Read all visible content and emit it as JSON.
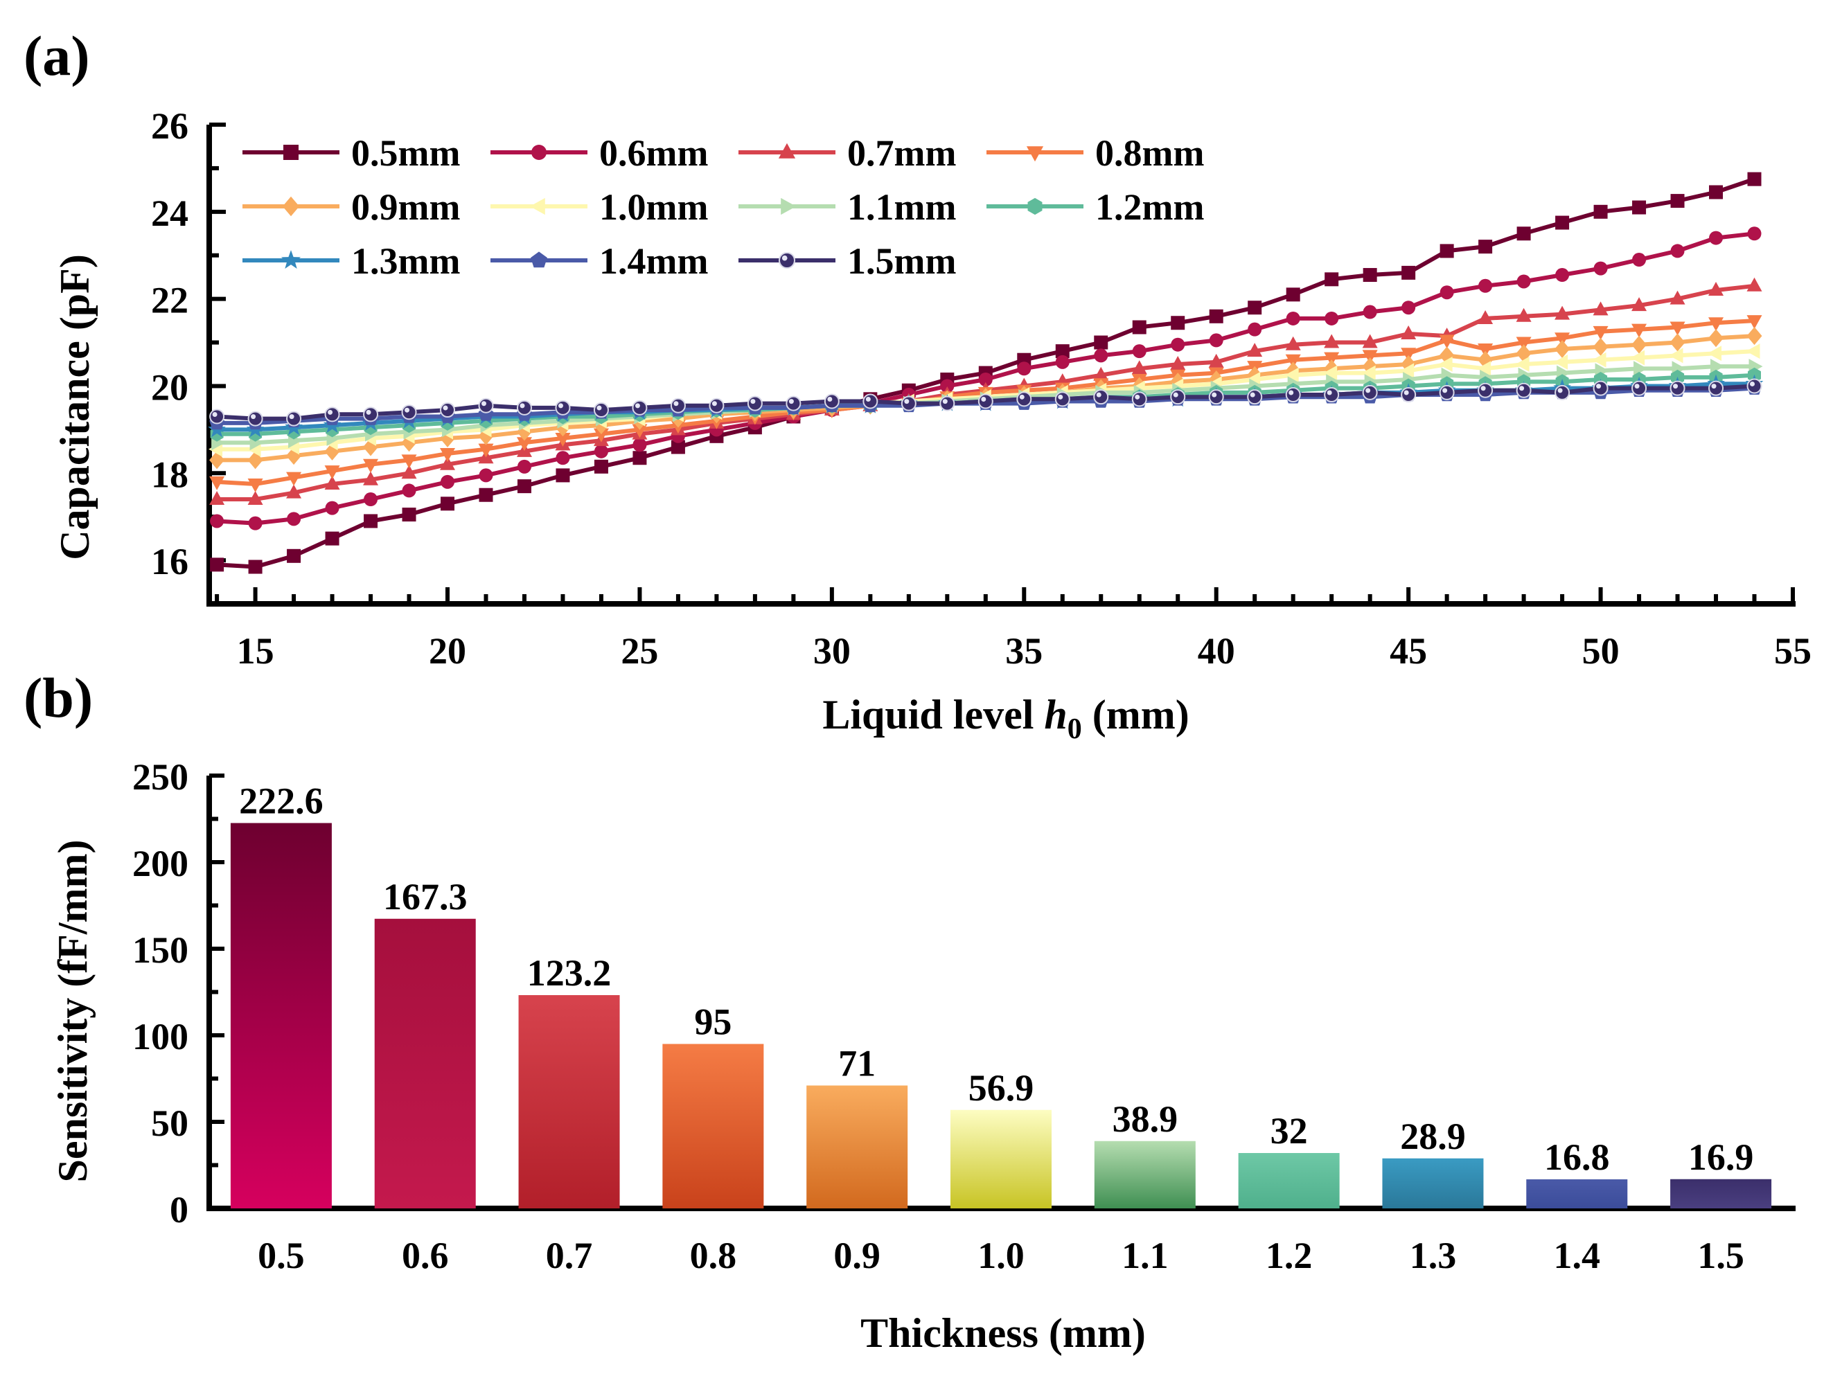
{
  "panels": {
    "a": {
      "label": "(a)"
    },
    "b": {
      "label": "(b)"
    }
  },
  "chart_data": [
    {
      "type": "line",
      "panel": "(a)",
      "title": "",
      "xlabel_prefix": "Liquid level ",
      "xlabel_var": "h",
      "xlabel_sub": "0",
      "xlabel_suffix": " (mm)",
      "ylabel": "Capacitance (pF)",
      "xlim": [
        13.8,
        55
      ],
      "ylim": [
        15,
        26
      ],
      "xticks": [
        15,
        20,
        25,
        30,
        35,
        40,
        45,
        50,
        55
      ],
      "yticks": [
        16,
        18,
        20,
        22,
        24,
        26
      ],
      "x": [
        14,
        15,
        16,
        17,
        18,
        19,
        20,
        21,
        22,
        23,
        24,
        25,
        26,
        27,
        28,
        29,
        30,
        31,
        32,
        33,
        34,
        35,
        36,
        37,
        38,
        39,
        40,
        41,
        42,
        43,
        44,
        45,
        46,
        47,
        48,
        49,
        50,
        51,
        52,
        53,
        54
      ],
      "legend_position": "top-left",
      "series": [
        {
          "name": "0.5mm",
          "color": "#6e0030",
          "marker": "square",
          "values": [
            15.9,
            15.85,
            16.1,
            16.5,
            16.9,
            17.05,
            17.3,
            17.5,
            17.7,
            17.95,
            18.15,
            18.35,
            18.6,
            18.85,
            19.05,
            19.3,
            19.5,
            19.7,
            19.9,
            20.15,
            20.3,
            20.6,
            20.8,
            21.0,
            21.35,
            21.45,
            21.6,
            21.8,
            22.1,
            22.45,
            22.55,
            22.6,
            23.1,
            23.2,
            23.5,
            23.75,
            24.0,
            24.1,
            24.25,
            24.45,
            24.75
          ]
        },
        {
          "name": "0.6mm",
          "color": "#b0124a",
          "marker": "circle",
          "values": [
            16.9,
            16.85,
            16.95,
            17.2,
            17.4,
            17.6,
            17.8,
            17.95,
            18.15,
            18.35,
            18.5,
            18.65,
            18.85,
            19.0,
            19.15,
            19.3,
            19.45,
            19.6,
            19.8,
            20.0,
            20.15,
            20.4,
            20.55,
            20.7,
            20.8,
            20.95,
            21.05,
            21.3,
            21.55,
            21.55,
            21.7,
            21.8,
            22.15,
            22.3,
            22.4,
            22.55,
            22.7,
            22.9,
            23.1,
            23.4,
            23.5
          ]
        },
        {
          "name": "0.7mm",
          "color": "#d7434d",
          "marker": "triangle-up",
          "values": [
            17.4,
            17.4,
            17.55,
            17.75,
            17.85,
            18.0,
            18.2,
            18.35,
            18.5,
            18.65,
            18.75,
            18.9,
            19.0,
            19.15,
            19.25,
            19.35,
            19.45,
            19.55,
            19.65,
            19.8,
            19.9,
            20.0,
            20.1,
            20.25,
            20.4,
            20.5,
            20.55,
            20.8,
            20.95,
            21.0,
            21.0,
            21.2,
            21.15,
            21.55,
            21.6,
            21.65,
            21.75,
            21.85,
            22.0,
            22.2,
            22.3
          ]
        },
        {
          "name": "0.8mm",
          "color": "#f57c45",
          "marker": "triangle-down",
          "values": [
            17.8,
            17.75,
            17.9,
            18.05,
            18.2,
            18.3,
            18.45,
            18.55,
            18.7,
            18.8,
            18.9,
            19.0,
            19.1,
            19.2,
            19.3,
            19.4,
            19.45,
            19.55,
            19.6,
            19.75,
            19.85,
            19.9,
            19.95,
            20.05,
            20.15,
            20.25,
            20.3,
            20.45,
            20.6,
            20.65,
            20.7,
            20.75,
            21.05,
            20.85,
            21.0,
            21.1,
            21.25,
            21.3,
            21.35,
            21.45,
            21.5
          ]
        },
        {
          "name": "0.9mm",
          "color": "#f9ac5e",
          "marker": "diamond",
          "values": [
            18.3,
            18.3,
            18.4,
            18.5,
            18.6,
            18.7,
            18.8,
            18.85,
            18.95,
            19.05,
            19.1,
            19.2,
            19.25,
            19.35,
            19.4,
            19.45,
            19.5,
            19.55,
            19.6,
            19.7,
            19.75,
            19.8,
            19.85,
            19.95,
            20.0,
            20.1,
            20.15,
            20.25,
            20.35,
            20.4,
            20.45,
            20.5,
            20.7,
            20.6,
            20.75,
            20.85,
            20.9,
            20.95,
            21.0,
            21.1,
            21.15
          ]
        },
        {
          "name": "1.0mm",
          "color": "#fef7ae",
          "marker": "triangle-left",
          "values": [
            18.55,
            18.55,
            18.6,
            18.7,
            18.8,
            18.85,
            18.95,
            19.0,
            19.1,
            19.15,
            19.2,
            19.25,
            19.35,
            19.4,
            19.45,
            19.5,
            19.55,
            19.6,
            19.65,
            19.7,
            19.75,
            19.8,
            19.85,
            19.9,
            19.95,
            20.0,
            20.05,
            20.15,
            20.25,
            20.3,
            20.3,
            20.35,
            20.5,
            20.4,
            20.5,
            20.55,
            20.6,
            20.65,
            20.7,
            20.75,
            20.8
          ]
        },
        {
          "name": "1.1mm",
          "color": "#b5ddb0",
          "marker": "triangle-right",
          "values": [
            18.7,
            18.7,
            18.75,
            18.8,
            18.9,
            18.95,
            19.0,
            19.1,
            19.15,
            19.2,
            19.25,
            19.3,
            19.35,
            19.4,
            19.45,
            19.5,
            19.55,
            19.6,
            19.6,
            19.65,
            19.7,
            19.75,
            19.8,
            19.85,
            19.85,
            19.9,
            19.95,
            20.0,
            20.05,
            20.1,
            20.1,
            20.15,
            20.25,
            20.2,
            20.25,
            20.3,
            20.35,
            20.4,
            20.4,
            20.45,
            20.45
          ]
        },
        {
          "name": "1.2mm",
          "color": "#5fbb9a",
          "marker": "hexagon",
          "values": [
            18.9,
            18.9,
            18.95,
            19.0,
            19.05,
            19.1,
            19.15,
            19.2,
            19.25,
            19.3,
            19.3,
            19.35,
            19.4,
            19.45,
            19.45,
            19.5,
            19.55,
            19.55,
            19.6,
            19.6,
            19.65,
            19.7,
            19.7,
            19.75,
            19.75,
            19.8,
            19.85,
            19.85,
            19.9,
            19.95,
            19.95,
            20.0,
            20.05,
            20.05,
            20.1,
            20.1,
            20.15,
            20.15,
            20.2,
            20.2,
            20.25
          ]
        },
        {
          "name": "1.3mm",
          "color": "#3288bd",
          "marker": "star",
          "values": [
            19.0,
            19.0,
            19.05,
            19.1,
            19.15,
            19.2,
            19.25,
            19.3,
            19.3,
            19.35,
            19.4,
            19.4,
            19.45,
            19.45,
            19.5,
            19.5,
            19.55,
            19.55,
            19.6,
            19.6,
            19.6,
            19.65,
            19.65,
            19.7,
            19.7,
            19.7,
            19.75,
            19.75,
            19.8,
            19.8,
            19.85,
            19.85,
            19.9,
            19.9,
            19.9,
            19.95,
            19.95,
            20.0,
            20.0,
            20.05,
            20.05
          ]
        },
        {
          "name": "1.4mm",
          "color": "#4a5aa8",
          "marker": "pentagon",
          "values": [
            19.15,
            19.15,
            19.2,
            19.25,
            19.25,
            19.3,
            19.3,
            19.35,
            19.35,
            19.4,
            19.4,
            19.45,
            19.45,
            19.5,
            19.5,
            19.5,
            19.55,
            19.55,
            19.55,
            19.6,
            19.6,
            19.6,
            19.65,
            19.65,
            19.65,
            19.7,
            19.7,
            19.7,
            19.75,
            19.75,
            19.75,
            19.8,
            19.8,
            19.8,
            19.85,
            19.85,
            19.85,
            19.9,
            19.9,
            19.9,
            19.95
          ]
        },
        {
          "name": "1.5mm",
          "color": "#3b2f6b",
          "marker": "sphere",
          "values": [
            19.3,
            19.25,
            19.25,
            19.35,
            19.35,
            19.4,
            19.45,
            19.55,
            19.5,
            19.5,
            19.45,
            19.5,
            19.55,
            19.55,
            19.6,
            19.6,
            19.65,
            19.65,
            19.6,
            19.6,
            19.65,
            19.7,
            19.7,
            19.75,
            19.7,
            19.75,
            19.75,
            19.75,
            19.8,
            19.8,
            19.85,
            19.8,
            19.85,
            19.9,
            19.9,
            19.85,
            19.95,
            19.95,
            19.95,
            19.95,
            20.0
          ]
        }
      ]
    },
    {
      "type": "bar",
      "panel": "(b)",
      "title": "",
      "xlabel": "Thickness (mm)",
      "ylabel": "Sensitivity (fF/mm)",
      "ylim": [
        0,
        250
      ],
      "yticks": [
        0,
        50,
        100,
        150,
        200,
        250
      ],
      "categories": [
        "0.5",
        "0.6",
        "0.7",
        "0.8",
        "0.9",
        "1.0",
        "1.1",
        "1.2",
        "1.3",
        "1.4",
        "1.5"
      ],
      "values": [
        222.6,
        167.3,
        123.2,
        95,
        71,
        56.9,
        38.9,
        32,
        28.9,
        16.8,
        16.9
      ],
      "value_labels": [
        "222.6",
        "167.3",
        "123.2",
        "95",
        "71",
        "56.9",
        "38.9",
        "32",
        "28.9",
        "16.8",
        "16.9"
      ],
      "bar_colors": [
        [
          "#6e0030",
          "#d6005e"
        ],
        [
          "#a50f3d",
          "#c4194d"
        ],
        [
          "#d7434d",
          "#b21f2a"
        ],
        [
          "#f57c45",
          "#c9421b"
        ],
        [
          "#f9ac5e",
          "#d2691e"
        ],
        [
          "#fdfdc2",
          "#c8c424"
        ],
        [
          "#b5ddb0",
          "#3f8f52"
        ],
        [
          "#6ec8a6",
          "#4fb08c"
        ],
        [
          "#3a9bc3",
          "#2a7899"
        ],
        [
          "#4a5aa8",
          "#3b4c9a"
        ],
        [
          "#3b2f6b",
          "#4a3f80"
        ]
      ]
    }
  ]
}
